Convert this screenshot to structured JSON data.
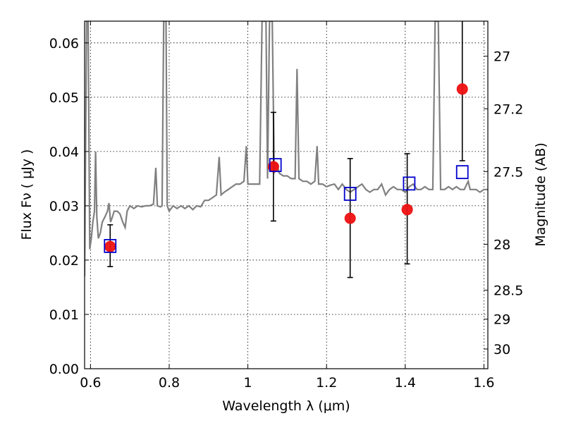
{
  "chart_data": {
    "type": "scatter",
    "xlabel": "Wavelength  λ (μm)",
    "ylabel": "Flux  Fν ( μJy )",
    "ylabel_right": "Magnitude (AB)",
    "xlim": [
      0.585,
      1.61
    ],
    "ylim": [
      0.0,
      0.064
    ],
    "grid": true,
    "x_ticks": [
      0.6,
      0.8,
      1.0,
      1.2,
      1.4,
      1.6
    ],
    "x_tick_labels": [
      "0.6",
      "0.8",
      "1",
      "1.2",
      "1.4",
      "1.6"
    ],
    "y_ticks": [
      0.0,
      0.01,
      0.02,
      0.03,
      0.04,
      0.05,
      0.06
    ],
    "y_tick_labels": [
      "0.00",
      "0.01",
      "0.02",
      "0.03",
      "0.04",
      "0.05",
      "0.06"
    ],
    "mag_ticks": [
      27,
      27.2,
      27.5,
      28,
      28.5,
      29,
      30
    ],
    "mag_tick_labels": [
      "27",
      "27.2",
      "27.5",
      "28",
      "28.5",
      "29",
      "30"
    ],
    "observed": {
      "color": "#ee1111",
      "points": [
        {
          "x": 0.65,
          "y": 0.0225,
          "yerr_low": 0.0188,
          "yerr_high": 0.0265
        },
        {
          "x": 1.065,
          "y": 0.0372,
          "yerr_low": 0.0272,
          "yerr_high": 0.0472
        },
        {
          "x": 1.26,
          "y": 0.0277,
          "yerr_low": 0.0168,
          "yerr_high": 0.0387
        },
        {
          "x": 1.405,
          "y": 0.0293,
          "yerr_low": 0.0193,
          "yerr_high": 0.0396
        },
        {
          "x": 1.545,
          "y": 0.0515,
          "yerr_low": 0.0383,
          "yerr_high": 0.064
        }
      ]
    },
    "model": {
      "color": "#0000cc",
      "points": [
        {
          "x": 0.65,
          "y": 0.0226
        },
        {
          "x": 1.07,
          "y": 0.0375
        },
        {
          "x": 1.26,
          "y": 0.0322
        },
        {
          "x": 1.41,
          "y": 0.0341
        },
        {
          "x": 1.545,
          "y": 0.0362
        }
      ]
    },
    "spectrum": {
      "color": "#808080",
      "points": [
        [
          0.585,
          0.017
        ],
        [
          0.59,
          0.064
        ],
        [
          0.594,
          0.064
        ],
        [
          0.598,
          0.022
        ],
        [
          0.602,
          0.024
        ],
        [
          0.606,
          0.027
        ],
        [
          0.61,
          0.029
        ],
        [
          0.613,
          0.04
        ],
        [
          0.616,
          0.028
        ],
        [
          0.62,
          0.024
        ],
        [
          0.625,
          0.025
        ],
        [
          0.63,
          0.027
        ],
        [
          0.637,
          0.028
        ],
        [
          0.643,
          0.029
        ],
        [
          0.647,
          0.0305
        ],
        [
          0.651,
          0.027
        ],
        [
          0.656,
          0.028
        ],
        [
          0.66,
          0.029
        ],
        [
          0.668,
          0.029
        ],
        [
          0.675,
          0.0285
        ],
        [
          0.682,
          0.027
        ],
        [
          0.688,
          0.026
        ],
        [
          0.693,
          0.029
        ],
        [
          0.7,
          0.03
        ],
        [
          0.71,
          0.0295
        ],
        [
          0.72,
          0.03
        ],
        [
          0.73,
          0.0298
        ],
        [
          0.74,
          0.03
        ],
        [
          0.75,
          0.03
        ],
        [
          0.76,
          0.0303
        ],
        [
          0.766,
          0.037
        ],
        [
          0.77,
          0.03
        ],
        [
          0.778,
          0.0298
        ],
        [
          0.782,
          0.03
        ],
        [
          0.786,
          0.064
        ],
        [
          0.792,
          0.064
        ],
        [
          0.795,
          0.03
        ],
        [
          0.8,
          0.029
        ],
        [
          0.81,
          0.03
        ],
        [
          0.82,
          0.0295
        ],
        [
          0.83,
          0.03
        ],
        [
          0.84,
          0.0295
        ],
        [
          0.85,
          0.03
        ],
        [
          0.86,
          0.0293
        ],
        [
          0.87,
          0.03
        ],
        [
          0.88,
          0.0298
        ],
        [
          0.89,
          0.031
        ],
        [
          0.9,
          0.031
        ],
        [
          0.91,
          0.0315
        ],
        [
          0.92,
          0.032
        ],
        [
          0.927,
          0.039
        ],
        [
          0.932,
          0.032
        ],
        [
          0.94,
          0.0325
        ],
        [
          0.95,
          0.033
        ],
        [
          0.96,
          0.0335
        ],
        [
          0.97,
          0.034
        ],
        [
          0.98,
          0.034
        ],
        [
          0.99,
          0.0345
        ],
        [
          0.996,
          0.041
        ],
        [
          1.0,
          0.034
        ],
        [
          1.01,
          0.034
        ],
        [
          1.02,
          0.034
        ],
        [
          1.03,
          0.034
        ],
        [
          1.036,
          0.064
        ],
        [
          1.046,
          0.064
        ],
        [
          1.05,
          0.035
        ],
        [
          1.055,
          0.064
        ],
        [
          1.062,
          0.064
        ],
        [
          1.067,
          0.036
        ],
        [
          1.072,
          0.038
        ],
        [
          1.08,
          0.036
        ],
        [
          1.09,
          0.0355
        ],
        [
          1.1,
          0.0355
        ],
        [
          1.11,
          0.035
        ],
        [
          1.12,
          0.035
        ],
        [
          1.125,
          0.0552
        ],
        [
          1.13,
          0.035
        ],
        [
          1.14,
          0.0345
        ],
        [
          1.15,
          0.0345
        ],
        [
          1.16,
          0.034
        ],
        [
          1.17,
          0.0345
        ],
        [
          1.176,
          0.041
        ],
        [
          1.18,
          0.034
        ],
        [
          1.19,
          0.034
        ],
        [
          1.2,
          0.0335
        ],
        [
          1.21,
          0.0338
        ],
        [
          1.22,
          0.034
        ],
        [
          1.23,
          0.033
        ],
        [
          1.24,
          0.034
        ],
        [
          1.25,
          0.033
        ],
        [
          1.26,
          0.0325
        ],
        [
          1.27,
          0.033
        ],
        [
          1.28,
          0.0335
        ],
        [
          1.29,
          0.034
        ],
        [
          1.3,
          0.033
        ],
        [
          1.31,
          0.0325
        ],
        [
          1.32,
          0.033
        ],
        [
          1.33,
          0.033
        ],
        [
          1.34,
          0.034
        ],
        [
          1.35,
          0.032
        ],
        [
          1.36,
          0.033
        ],
        [
          1.37,
          0.0335
        ],
        [
          1.38,
          0.033
        ],
        [
          1.39,
          0.033
        ],
        [
          1.4,
          0.0325
        ],
        [
          1.41,
          0.0335
        ],
        [
          1.42,
          0.034
        ],
        [
          1.43,
          0.033
        ],
        [
          1.44,
          0.033
        ],
        [
          1.45,
          0.0335
        ],
        [
          1.46,
          0.033
        ],
        [
          1.47,
          0.033
        ],
        [
          1.476,
          0.064
        ],
        [
          1.484,
          0.064
        ],
        [
          1.49,
          0.033
        ],
        [
          1.5,
          0.033
        ],
        [
          1.51,
          0.0335
        ],
        [
          1.52,
          0.033
        ],
        [
          1.53,
          0.0335
        ],
        [
          1.54,
          0.033
        ],
        [
          1.55,
          0.033
        ],
        [
          1.56,
          0.0345
        ],
        [
          1.565,
          0.033
        ],
        [
          1.57,
          0.033
        ],
        [
          1.58,
          0.033
        ],
        [
          1.59,
          0.0325
        ],
        [
          1.6,
          0.033
        ],
        [
          1.61,
          0.033
        ]
      ]
    }
  }
}
